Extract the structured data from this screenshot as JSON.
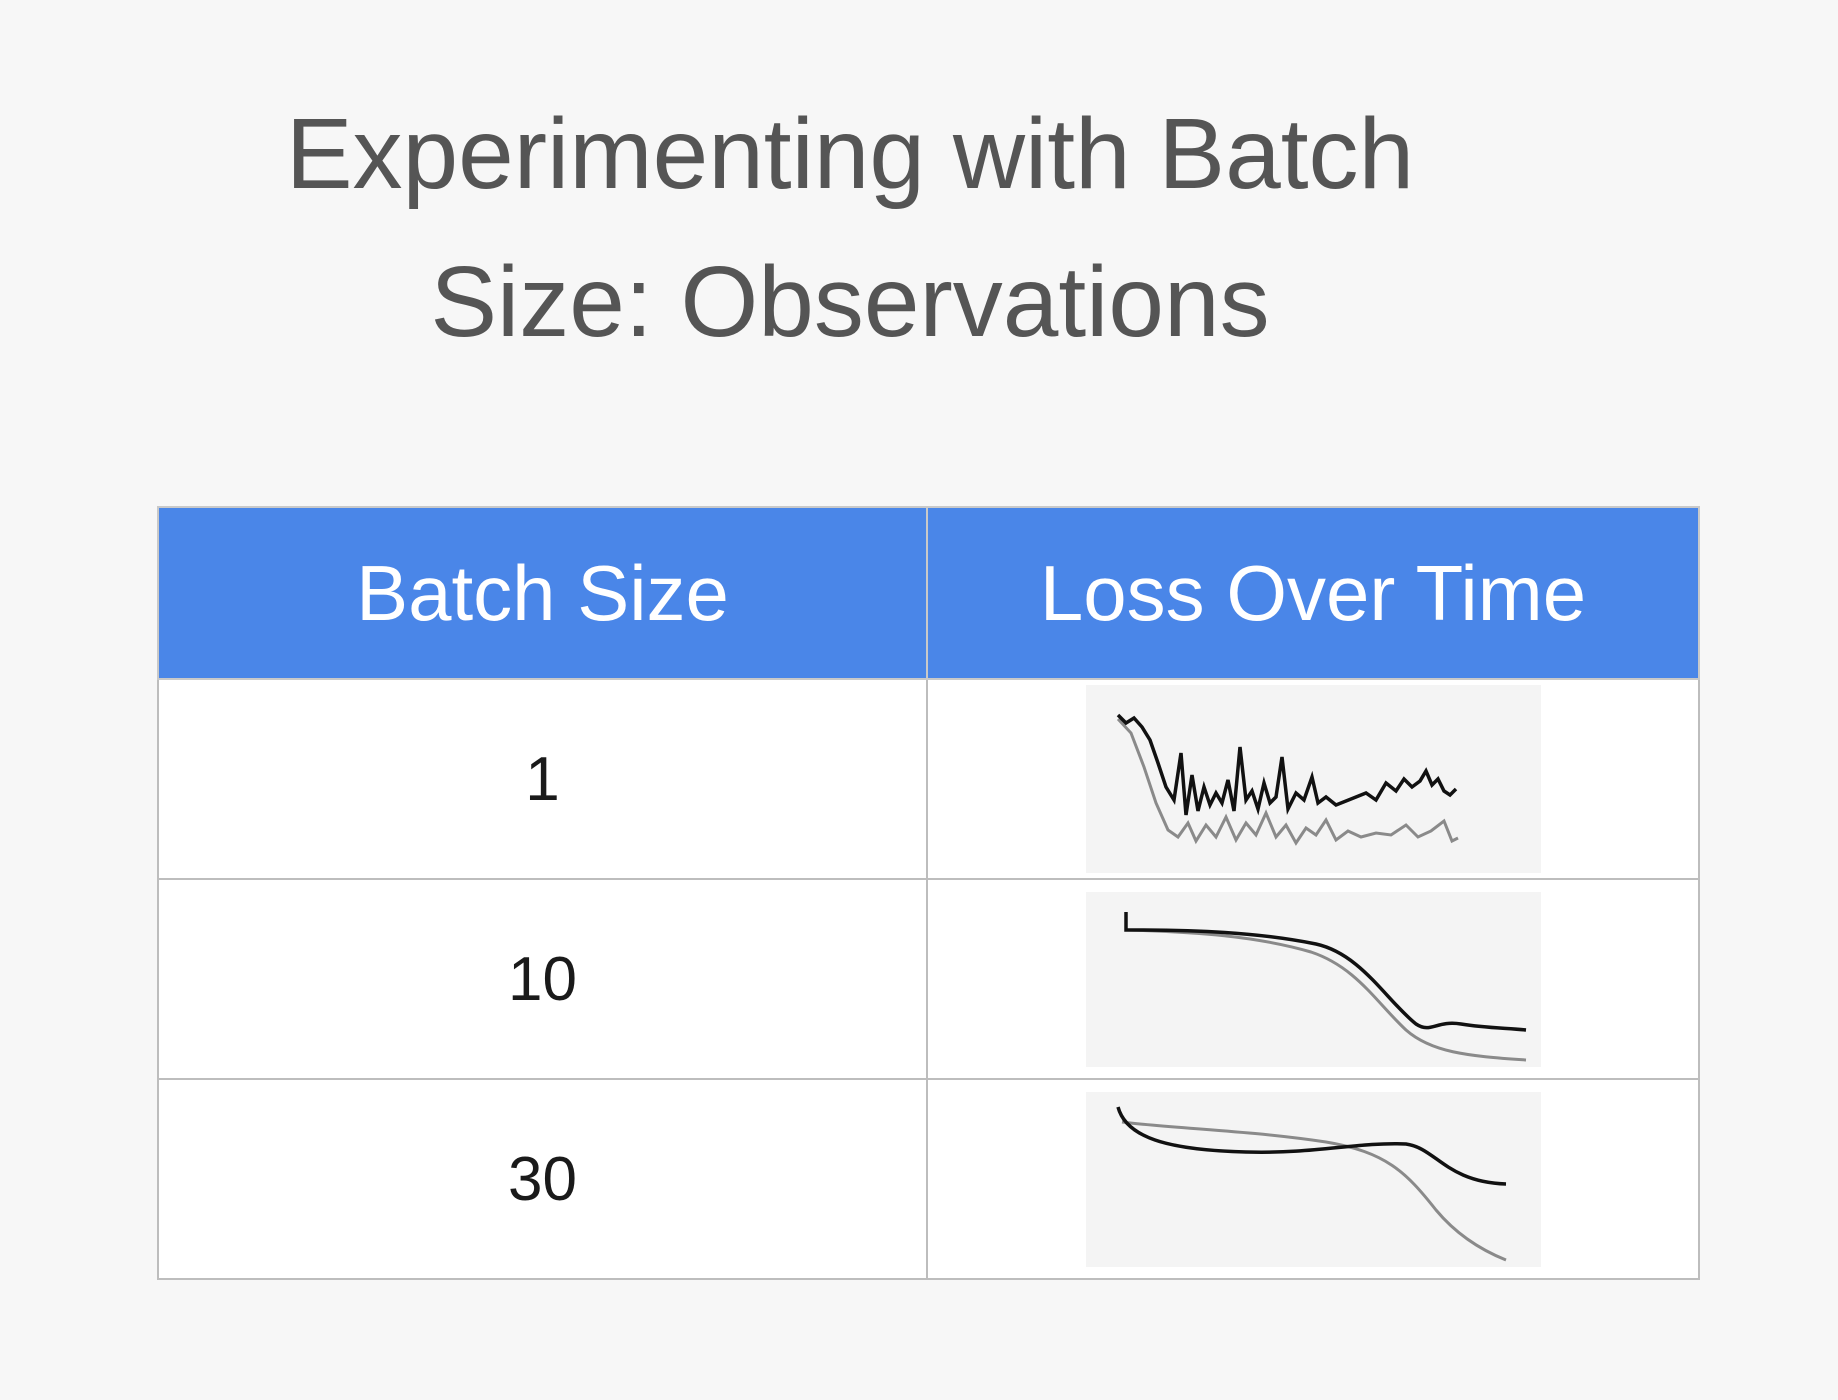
{
  "title": {
    "line1": "Experimenting with Batch",
    "line2": "Size: Observations"
  },
  "table": {
    "headers": [
      "Batch Size",
      "Loss Over Time"
    ],
    "rows": [
      {
        "batch_size": "1",
        "loss_plot_icon": "noisy-loss-curve"
      },
      {
        "batch_size": "10",
        "loss_plot_icon": "smooth-declining-loss-curve"
      },
      {
        "batch_size": "30",
        "loss_plot_icon": "slow-declining-loss-curve"
      }
    ]
  },
  "colors": {
    "header_background": "#4a86e8",
    "header_text": "#ffffff",
    "title_text": "#555555",
    "train_line": "#111111",
    "validation_line": "#8a8a8a"
  }
}
